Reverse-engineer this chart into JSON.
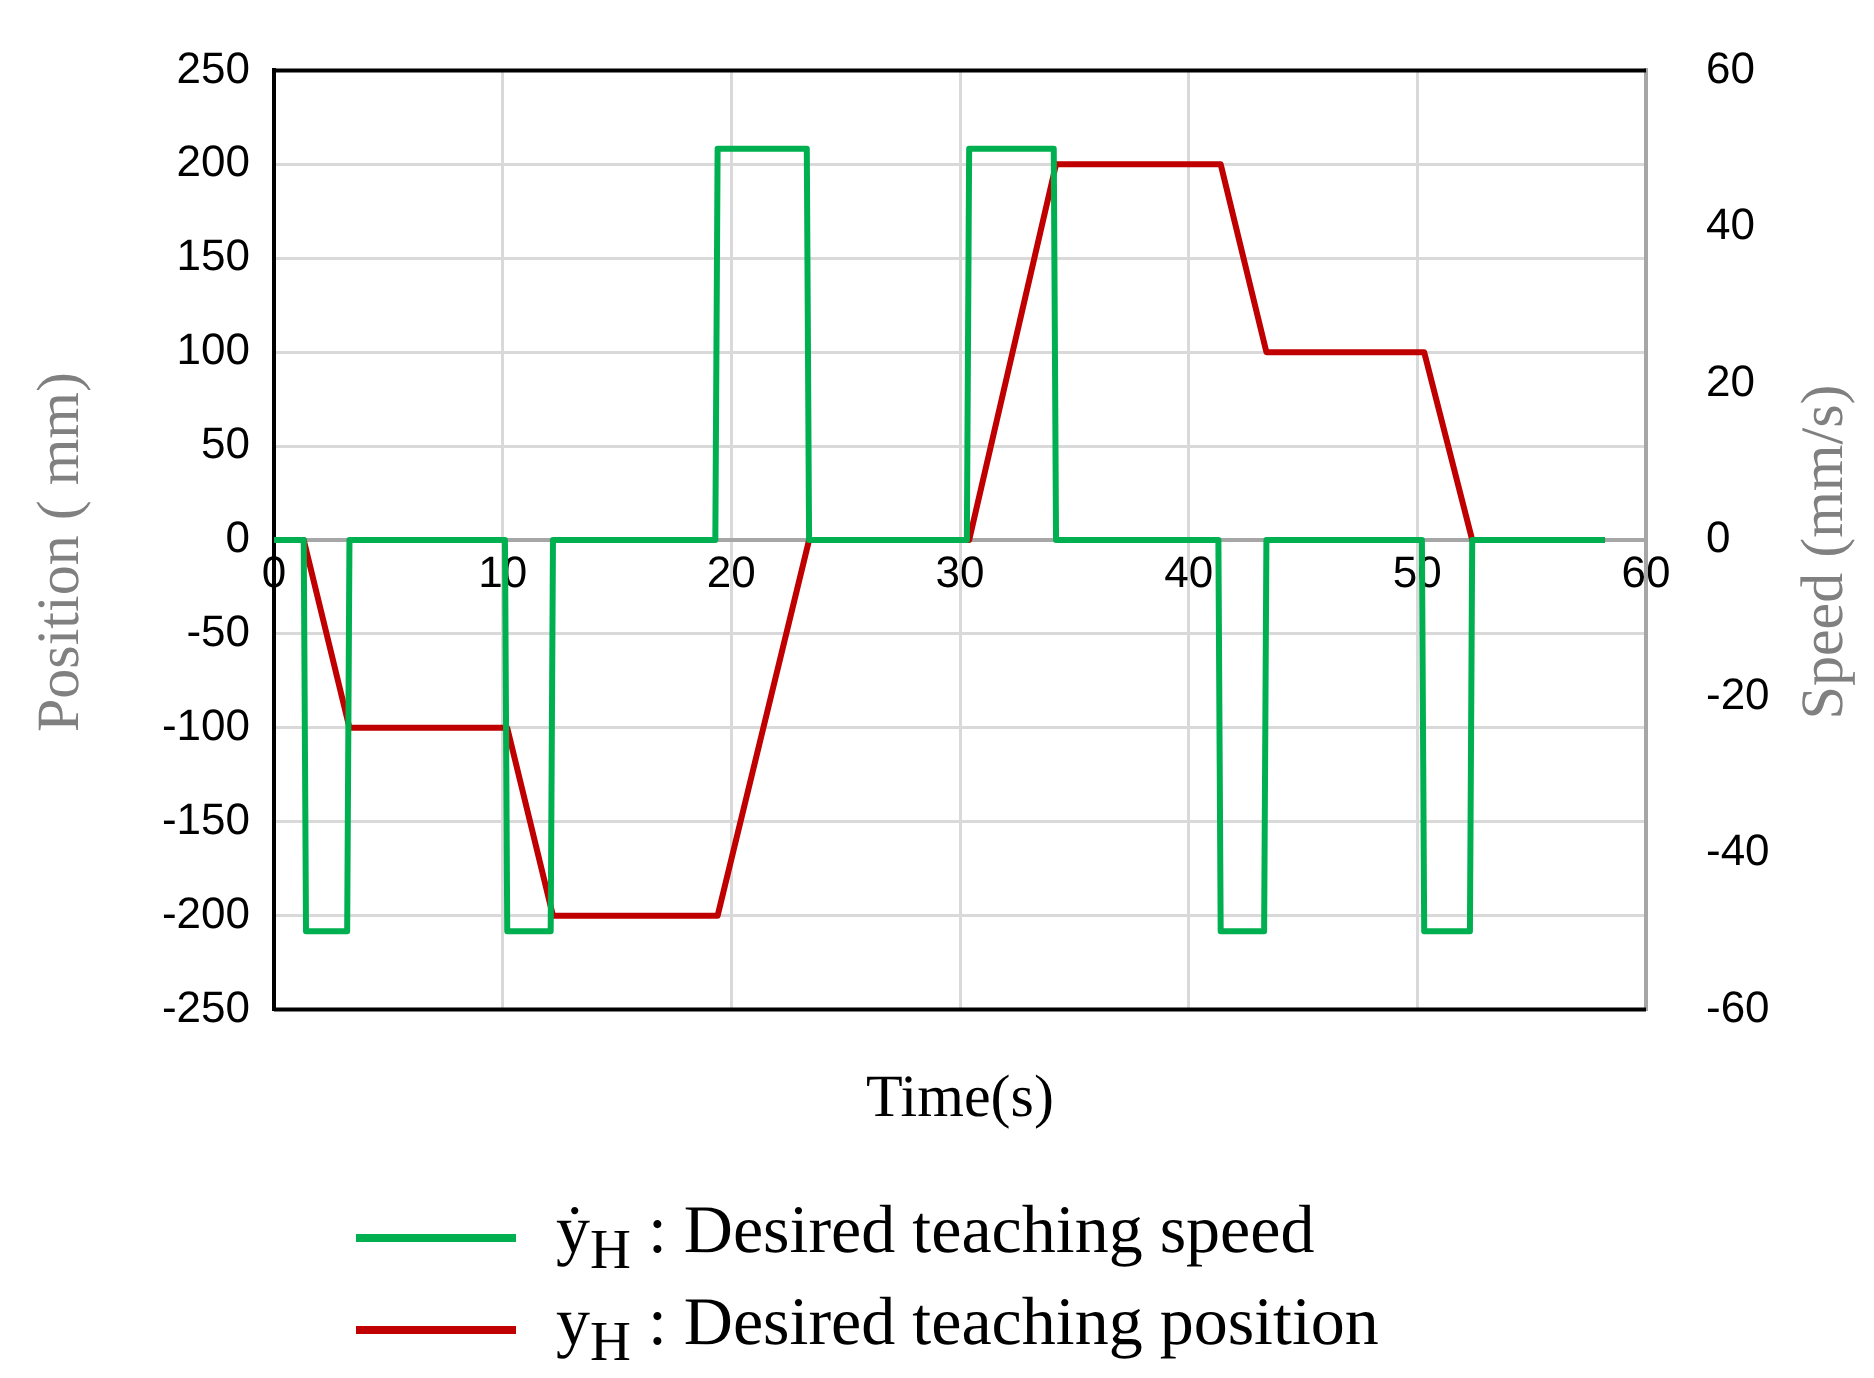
{
  "chart_data": {
    "type": "line",
    "xlabel": "Time(s)",
    "ylabel": "Position ( mm)",
    "y2label": "Speed  (mm/s)",
    "xlim": [
      0,
      60
    ],
    "xticks": [
      0,
      10,
      20,
      30,
      40,
      50,
      60
    ],
    "ylim": [
      -250,
      250
    ],
    "yticks": [
      -250,
      -200,
      -150,
      -100,
      -50,
      0,
      50,
      100,
      150,
      200,
      250
    ],
    "y2lim": [
      -60,
      60
    ],
    "y2ticks": [
      -60,
      -40,
      -20,
      0,
      20,
      40,
      60
    ],
    "grid": true,
    "legend": "bottom",
    "marker": "none",
    "line_style": "solid",
    "series": [
      {
        "name": "ẏ$_{H}$ : Desired teaching speed",
        "color": "#00b050",
        "axis": "y2",
        "x": [
          0,
          1.3,
          1.4,
          3.2,
          3.3,
          10.1,
          10.2,
          12.1,
          12.2,
          19.3,
          19.4,
          23.3,
          23.4,
          30.3,
          30.4,
          34.1,
          34.2,
          41.3,
          41.4,
          43.3,
          43.4,
          50.2,
          50.3,
          52.3,
          52.4,
          58.2
        ],
        "values": [
          0,
          0,
          -50,
          -50,
          0,
          0,
          -50,
          -50,
          0,
          0,
          50,
          50,
          0,
          0,
          50,
          50,
          0,
          0,
          -50,
          -50,
          0,
          0,
          -50,
          -50,
          0,
          0
        ]
      },
      {
        "name": "y$_{H}$ : Desired teaching position",
        "color": "#c00000",
        "x": [
          0,
          1.3,
          3.3,
          10.2,
          12.2,
          19.4,
          23.4,
          30.4,
          34.2,
          41.4,
          43.4,
          50.3,
          52.4,
          58.2
        ],
        "values": [
          0,
          0,
          -100,
          -100,
          -200,
          -200,
          0,
          0,
          200,
          200,
          100,
          100,
          0,
          0
        ]
      }
    ]
  }
}
